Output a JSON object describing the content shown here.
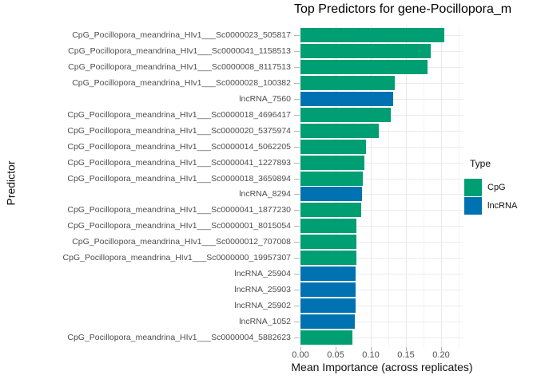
{
  "chart_data": {
    "type": "bar",
    "orientation": "horizontal",
    "title": "Top Predictors for gene-Pocillopora_m",
    "xlabel": "Mean Importance (across replicates)",
    "ylabel": "Predictor",
    "xlim": [
      0,
      0.23
    ],
    "grid": "major and minor vertical, major horizontal per category",
    "x_ticks": [
      {
        "label": "0.00",
        "value": 0.0
      },
      {
        "label": "0.05",
        "value": 0.05
      },
      {
        "label": "0.10",
        "value": 0.1
      },
      {
        "label": "0.15",
        "value": 0.15
      },
      {
        "label": "0.20",
        "value": 0.2
      }
    ],
    "x_minor_tick_values": [
      0.025,
      0.075,
      0.125,
      0.175,
      0.225
    ],
    "legend": {
      "title": "Type",
      "position": "right",
      "entries": [
        {
          "label": "CpG",
          "color": "#009E73"
        },
        {
          "label": "lncRNA",
          "color": "#0072B2"
        }
      ]
    },
    "type_colors": {
      "CpG": "#009E73",
      "lncRNA": "#0072B2"
    },
    "bars": [
      {
        "label": "CpG_Pocillopora_meandrina_HIv1___Sc0000023_505817",
        "type": "CpG",
        "value": 0.204
      },
      {
        "label": "CpG_Pocillopora_meandrina_HIv1___Sc0000041_1158513",
        "type": "CpG",
        "value": 0.185
      },
      {
        "label": "CpG_Pocillopora_meandrina_HIv1___Sc0000008_8117513",
        "type": "CpG",
        "value": 0.181
      },
      {
        "label": "CpG_Pocillopora_meandrina_HIv1___Sc0000028_100382",
        "type": "CpG",
        "value": 0.134
      },
      {
        "label": "lncRNA_7560",
        "type": "lncRNA",
        "value": 0.132
      },
      {
        "label": "CpG_Pocillopora_meandrina_HIv1___Sc0000018_4696417",
        "type": "CpG",
        "value": 0.128
      },
      {
        "label": "CpG_Pocillopora_meandrina_HIv1___Sc0000020_5375974",
        "type": "CpG",
        "value": 0.111
      },
      {
        "label": "CpG_Pocillopora_meandrina_HIv1___Sc0000014_5062205",
        "type": "CpG",
        "value": 0.093
      },
      {
        "label": "CpG_Pocillopora_meandrina_HIv1___Sc0000041_1227893",
        "type": "CpG",
        "value": 0.091
      },
      {
        "label": "CpG_Pocillopora_meandrina_HIv1___Sc0000018_3659894",
        "type": "CpG",
        "value": 0.089
      },
      {
        "label": "lncRNA_8294",
        "type": "lncRNA",
        "value": 0.088
      },
      {
        "label": "CpG_Pocillopora_meandrina_HIv1___Sc0000041_1877230",
        "type": "CpG",
        "value": 0.086
      },
      {
        "label": "CpG_Pocillopora_meandrina_HIv1___Sc0000001_8015054",
        "type": "CpG",
        "value": 0.08
      },
      {
        "label": "CpG_Pocillopora_meandrina_HIv1___Sc0000012_707008",
        "type": "CpG",
        "value": 0.079
      },
      {
        "label": "CpG_Pocillopora_meandrina_HIv1___Sc0000000_19957307",
        "type": "CpG",
        "value": 0.079
      },
      {
        "label": "lncRNA_25904",
        "type": "lncRNA",
        "value": 0.078
      },
      {
        "label": "lncRNA_25903",
        "type": "lncRNA",
        "value": 0.078
      },
      {
        "label": "lncRNA_25902",
        "type": "lncRNA",
        "value": 0.078
      },
      {
        "label": "lncRNA_1052",
        "type": "lncRNA",
        "value": 0.077
      },
      {
        "label": "CpG_Pocillopora_meandrina_HIv1___Sc0000004_5882623",
        "type": "CpG",
        "value": 0.074
      }
    ]
  },
  "style": {
    "grid_major_color": "#e8e8e8",
    "grid_minor_color": "#f3f3f3",
    "tick_color": "#b3b3b3",
    "axis_text_color": "#4d4d4d",
    "title_color": "#000000",
    "background": "#ffffff"
  }
}
